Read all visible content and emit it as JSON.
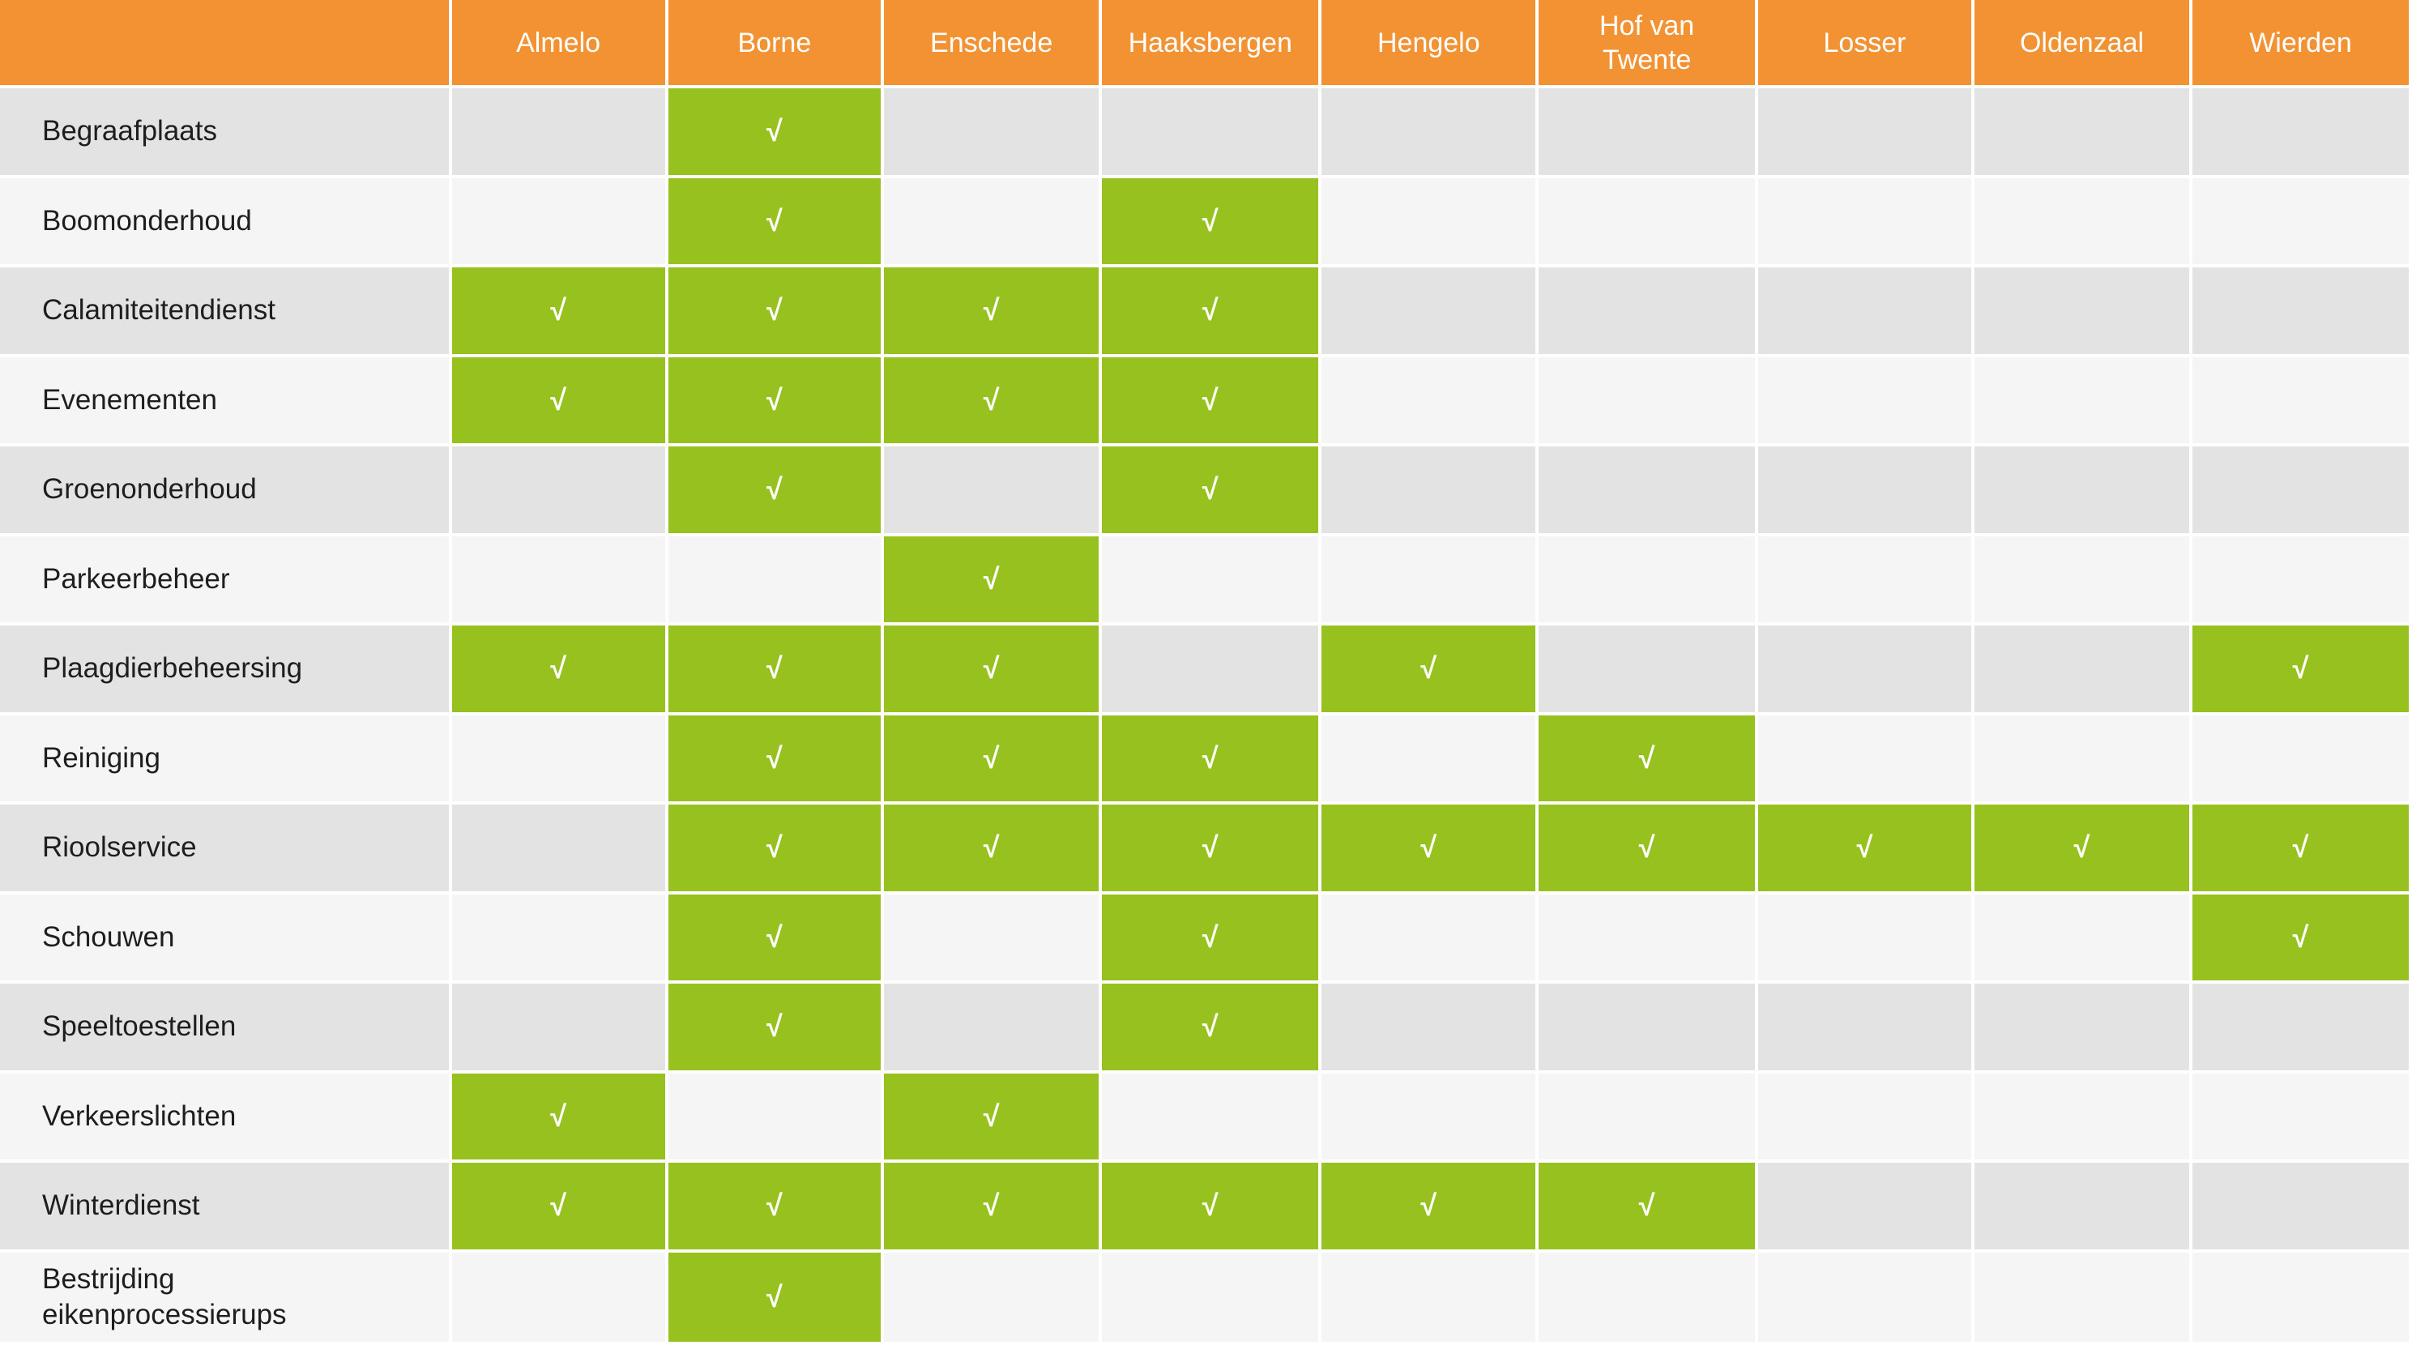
{
  "header": {
    "corner": "",
    "columns": [
      "Almelo",
      "Borne",
      "Enschede",
      "Haaksbergen",
      "Hengelo",
      "Hof van Twente",
      "Losser",
      "Oldenzaal",
      "Wierden"
    ]
  },
  "check_mark": "√",
  "colors": {
    "header_bg": "#f39232",
    "active_cell": "#97c11f",
    "row_odd": "#e3e3e3",
    "row_even": "#f5f5f5"
  },
  "rows": [
    {
      "label": "Begraafplaats",
      "cells": [
        false,
        true,
        false,
        false,
        false,
        false,
        false,
        false,
        false
      ]
    },
    {
      "label": "Boomonderhoud",
      "cells": [
        false,
        true,
        false,
        true,
        false,
        false,
        false,
        false,
        false
      ]
    },
    {
      "label": "Calamiteitendienst",
      "cells": [
        true,
        true,
        true,
        true,
        false,
        false,
        false,
        false,
        false
      ]
    },
    {
      "label": "Evenementen",
      "cells": [
        true,
        true,
        true,
        true,
        false,
        false,
        false,
        false,
        false
      ]
    },
    {
      "label": "Groenonderhoud",
      "cells": [
        false,
        true,
        false,
        true,
        false,
        false,
        false,
        false,
        false
      ]
    },
    {
      "label": "Parkeerbeheer",
      "cells": [
        false,
        false,
        true,
        false,
        false,
        false,
        false,
        false,
        false
      ]
    },
    {
      "label": "Plaagdierbeheersing",
      "cells": [
        true,
        true,
        true,
        false,
        true,
        false,
        false,
        false,
        true
      ]
    },
    {
      "label": "Reiniging",
      "cells": [
        false,
        true,
        true,
        true,
        false,
        true,
        false,
        false,
        false
      ]
    },
    {
      "label": "Rioolservice",
      "cells": [
        false,
        true,
        true,
        true,
        true,
        true,
        true,
        true,
        true
      ]
    },
    {
      "label": "Schouwen",
      "cells": [
        false,
        true,
        false,
        true,
        false,
        false,
        false,
        false,
        true
      ]
    },
    {
      "label": "Speeltoestellen",
      "cells": [
        false,
        true,
        false,
        true,
        false,
        false,
        false,
        false,
        false
      ]
    },
    {
      "label": "Verkeerslichten",
      "cells": [
        true,
        false,
        true,
        false,
        false,
        false,
        false,
        false,
        false
      ]
    },
    {
      "label": "Winterdienst",
      "cells": [
        true,
        true,
        true,
        true,
        true,
        true,
        false,
        false,
        false
      ]
    },
    {
      "label": "Bestrijding eikenprocessierups",
      "cells": [
        false,
        true,
        false,
        false,
        false,
        false,
        false,
        false,
        false
      ]
    }
  ]
}
